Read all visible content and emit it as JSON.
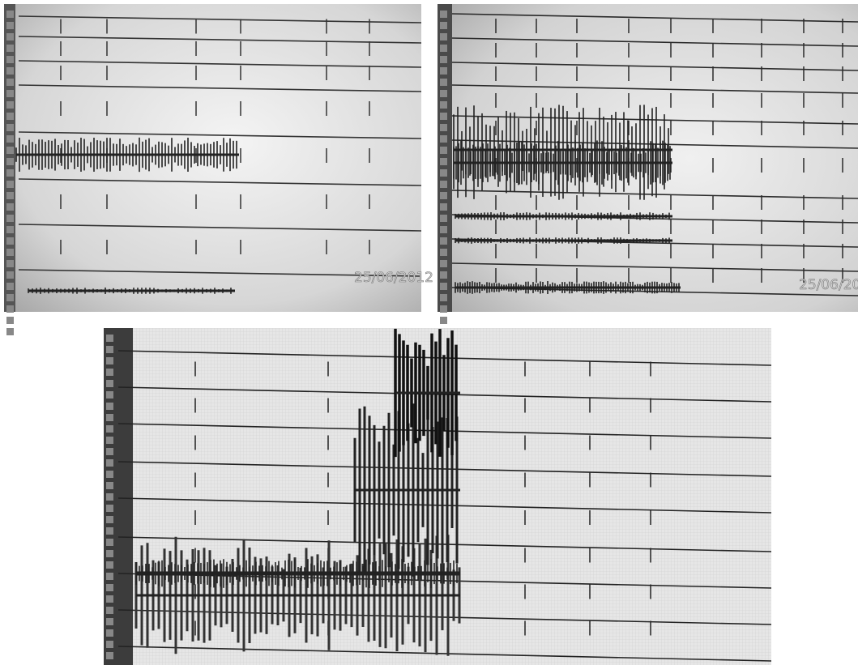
{
  "top_left": {
    "timestamp": "25/06/2012"
  },
  "top_right": {
    "timestamp": "25/06/20"
  }
}
